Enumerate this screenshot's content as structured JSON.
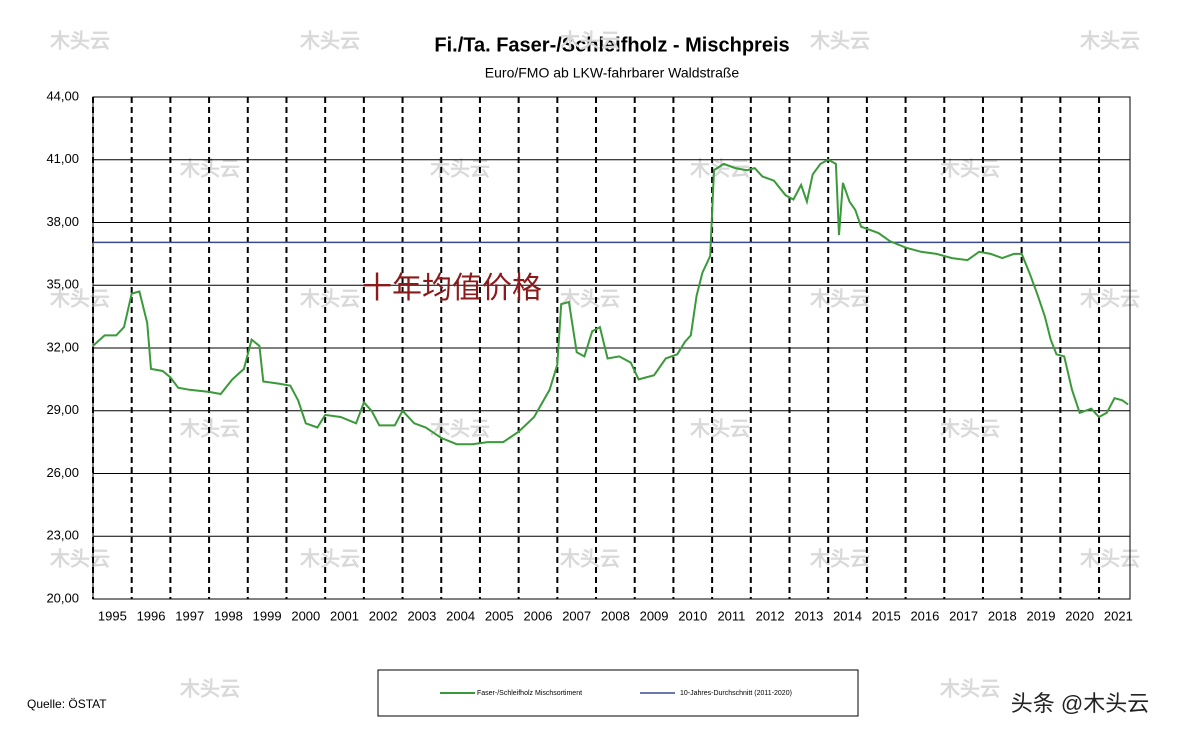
{
  "chart_data": {
    "type": "line",
    "title": "Fi./Ta. Faser-/Schleifholz - Mischpreis",
    "subtitle": "Euro/FMO ab LKW-fahrbarer Waldstraße",
    "annotation": "十年均值价格",
    "source": "Quelle: ÖSTAT",
    "watermark": "木头云",
    "credit": "头条 @木头云",
    "x": [
      1995.0,
      1995.3,
      1995.6,
      1995.8,
      1996.0,
      1996.2,
      1996.4,
      1996.5,
      1996.8,
      1997.0,
      1997.2,
      1997.5,
      1998.0,
      1998.3,
      1998.6,
      1998.9,
      1999.1,
      1999.3,
      1999.4,
      1999.8,
      2000.1,
      2000.3,
      2000.5,
      2000.8,
      2001.0,
      2001.4,
      2001.8,
      2002.0,
      2002.2,
      2002.4,
      2002.8,
      2003.0,
      2003.3,
      2003.6,
      2004.0,
      2004.4,
      2004.8,
      2005.2,
      2005.6,
      2006.0,
      2006.4,
      2006.8,
      2007.0,
      2007.1,
      2007.3,
      2007.5,
      2007.7,
      2007.9,
      2008.1,
      2008.3,
      2008.6,
      2008.9,
      2009.1,
      2009.5,
      2009.8,
      2010.1,
      2010.3,
      2010.45,
      2010.6,
      2010.75,
      2010.95,
      2011.05,
      2011.3,
      2011.6,
      2011.9,
      2012.1,
      2012.3,
      2012.6,
      2012.9,
      2013.1,
      2013.3,
      2013.45,
      2013.6,
      2013.8,
      2014.0,
      2014.2,
      2014.28,
      2014.38,
      2014.55,
      2014.7,
      2014.85,
      2015.3,
      2015.6,
      2016.0,
      2016.4,
      2016.8,
      2017.2,
      2017.6,
      2017.9,
      2018.2,
      2018.5,
      2018.8,
      2019.0,
      2019.2,
      2019.4,
      2019.6,
      2019.75,
      2019.9,
      2020.1,
      2020.3,
      2020.5,
      2020.8,
      2021.0,
      2021.2,
      2021.4,
      2021.6,
      2021.75
    ],
    "series": [
      {
        "name": "Faser-/Schleifholz Mischsortiment",
        "color": "#3a9a3a",
        "values": [
          32.1,
          32.6,
          32.6,
          33.0,
          34.6,
          34.7,
          33.2,
          31.0,
          30.9,
          30.6,
          30.1,
          30.0,
          29.9,
          29.8,
          30.5,
          31.0,
          32.4,
          32.1,
          30.4,
          30.3,
          30.2,
          29.5,
          28.4,
          28.2,
          28.8,
          28.7,
          28.4,
          29.4,
          29.0,
          28.3,
          28.3,
          29.0,
          28.4,
          28.2,
          27.7,
          27.4,
          27.4,
          27.5,
          27.5,
          28.0,
          28.7,
          30.0,
          31.2,
          34.1,
          34.2,
          31.8,
          31.6,
          32.8,
          33.0,
          31.5,
          31.6,
          31.3,
          30.5,
          30.7,
          31.5,
          31.7,
          32.3,
          32.6,
          34.5,
          35.6,
          36.4,
          40.5,
          40.8,
          40.6,
          40.5,
          40.6,
          40.2,
          40.0,
          39.3,
          39.1,
          39.8,
          39.0,
          40.3,
          40.8,
          41.0,
          40.8,
          37.4,
          39.9,
          39.0,
          38.6,
          37.8,
          37.5,
          37.1,
          36.8,
          36.6,
          36.5,
          36.3,
          36.2,
          36.6,
          36.5,
          36.3,
          36.5,
          36.5,
          35.6,
          34.6,
          33.5,
          32.4,
          31.7,
          31.6,
          30.0,
          28.9,
          29.1,
          28.7,
          28.9,
          29.6,
          29.5,
          29.3
        ]
      }
    ],
    "reference_lines": [
      {
        "name": "10-Jahres-Durchschnitt (2011-2020)",
        "color": "#3b4a8c",
        "value": 37.05
      }
    ],
    "xlim": [
      1995,
      2021.8
    ],
    "xticks": [
      1995,
      1996,
      1997,
      1998,
      1999,
      2000,
      2001,
      2002,
      2003,
      2004,
      2005,
      2006,
      2007,
      2008,
      2009,
      2010,
      2011,
      2012,
      2013,
      2014,
      2015,
      2016,
      2017,
      2018,
      2019,
      2020,
      2021
    ],
    "ylim": [
      20,
      44
    ],
    "yticks": [
      {
        "value": 20,
        "label": "20,00"
      },
      {
        "value": 23,
        "label": "23,00"
      },
      {
        "value": 26,
        "label": "26,00"
      },
      {
        "value": 29,
        "label": "29,00"
      },
      {
        "value": 32,
        "label": "32,00"
      },
      {
        "value": 35,
        "label": "35,00"
      },
      {
        "value": 38,
        "label": "38,00"
      },
      {
        "value": 41,
        "label": "41,00"
      },
      {
        "value": 44,
        "label": "44,00"
      }
    ],
    "grid": true
  }
}
